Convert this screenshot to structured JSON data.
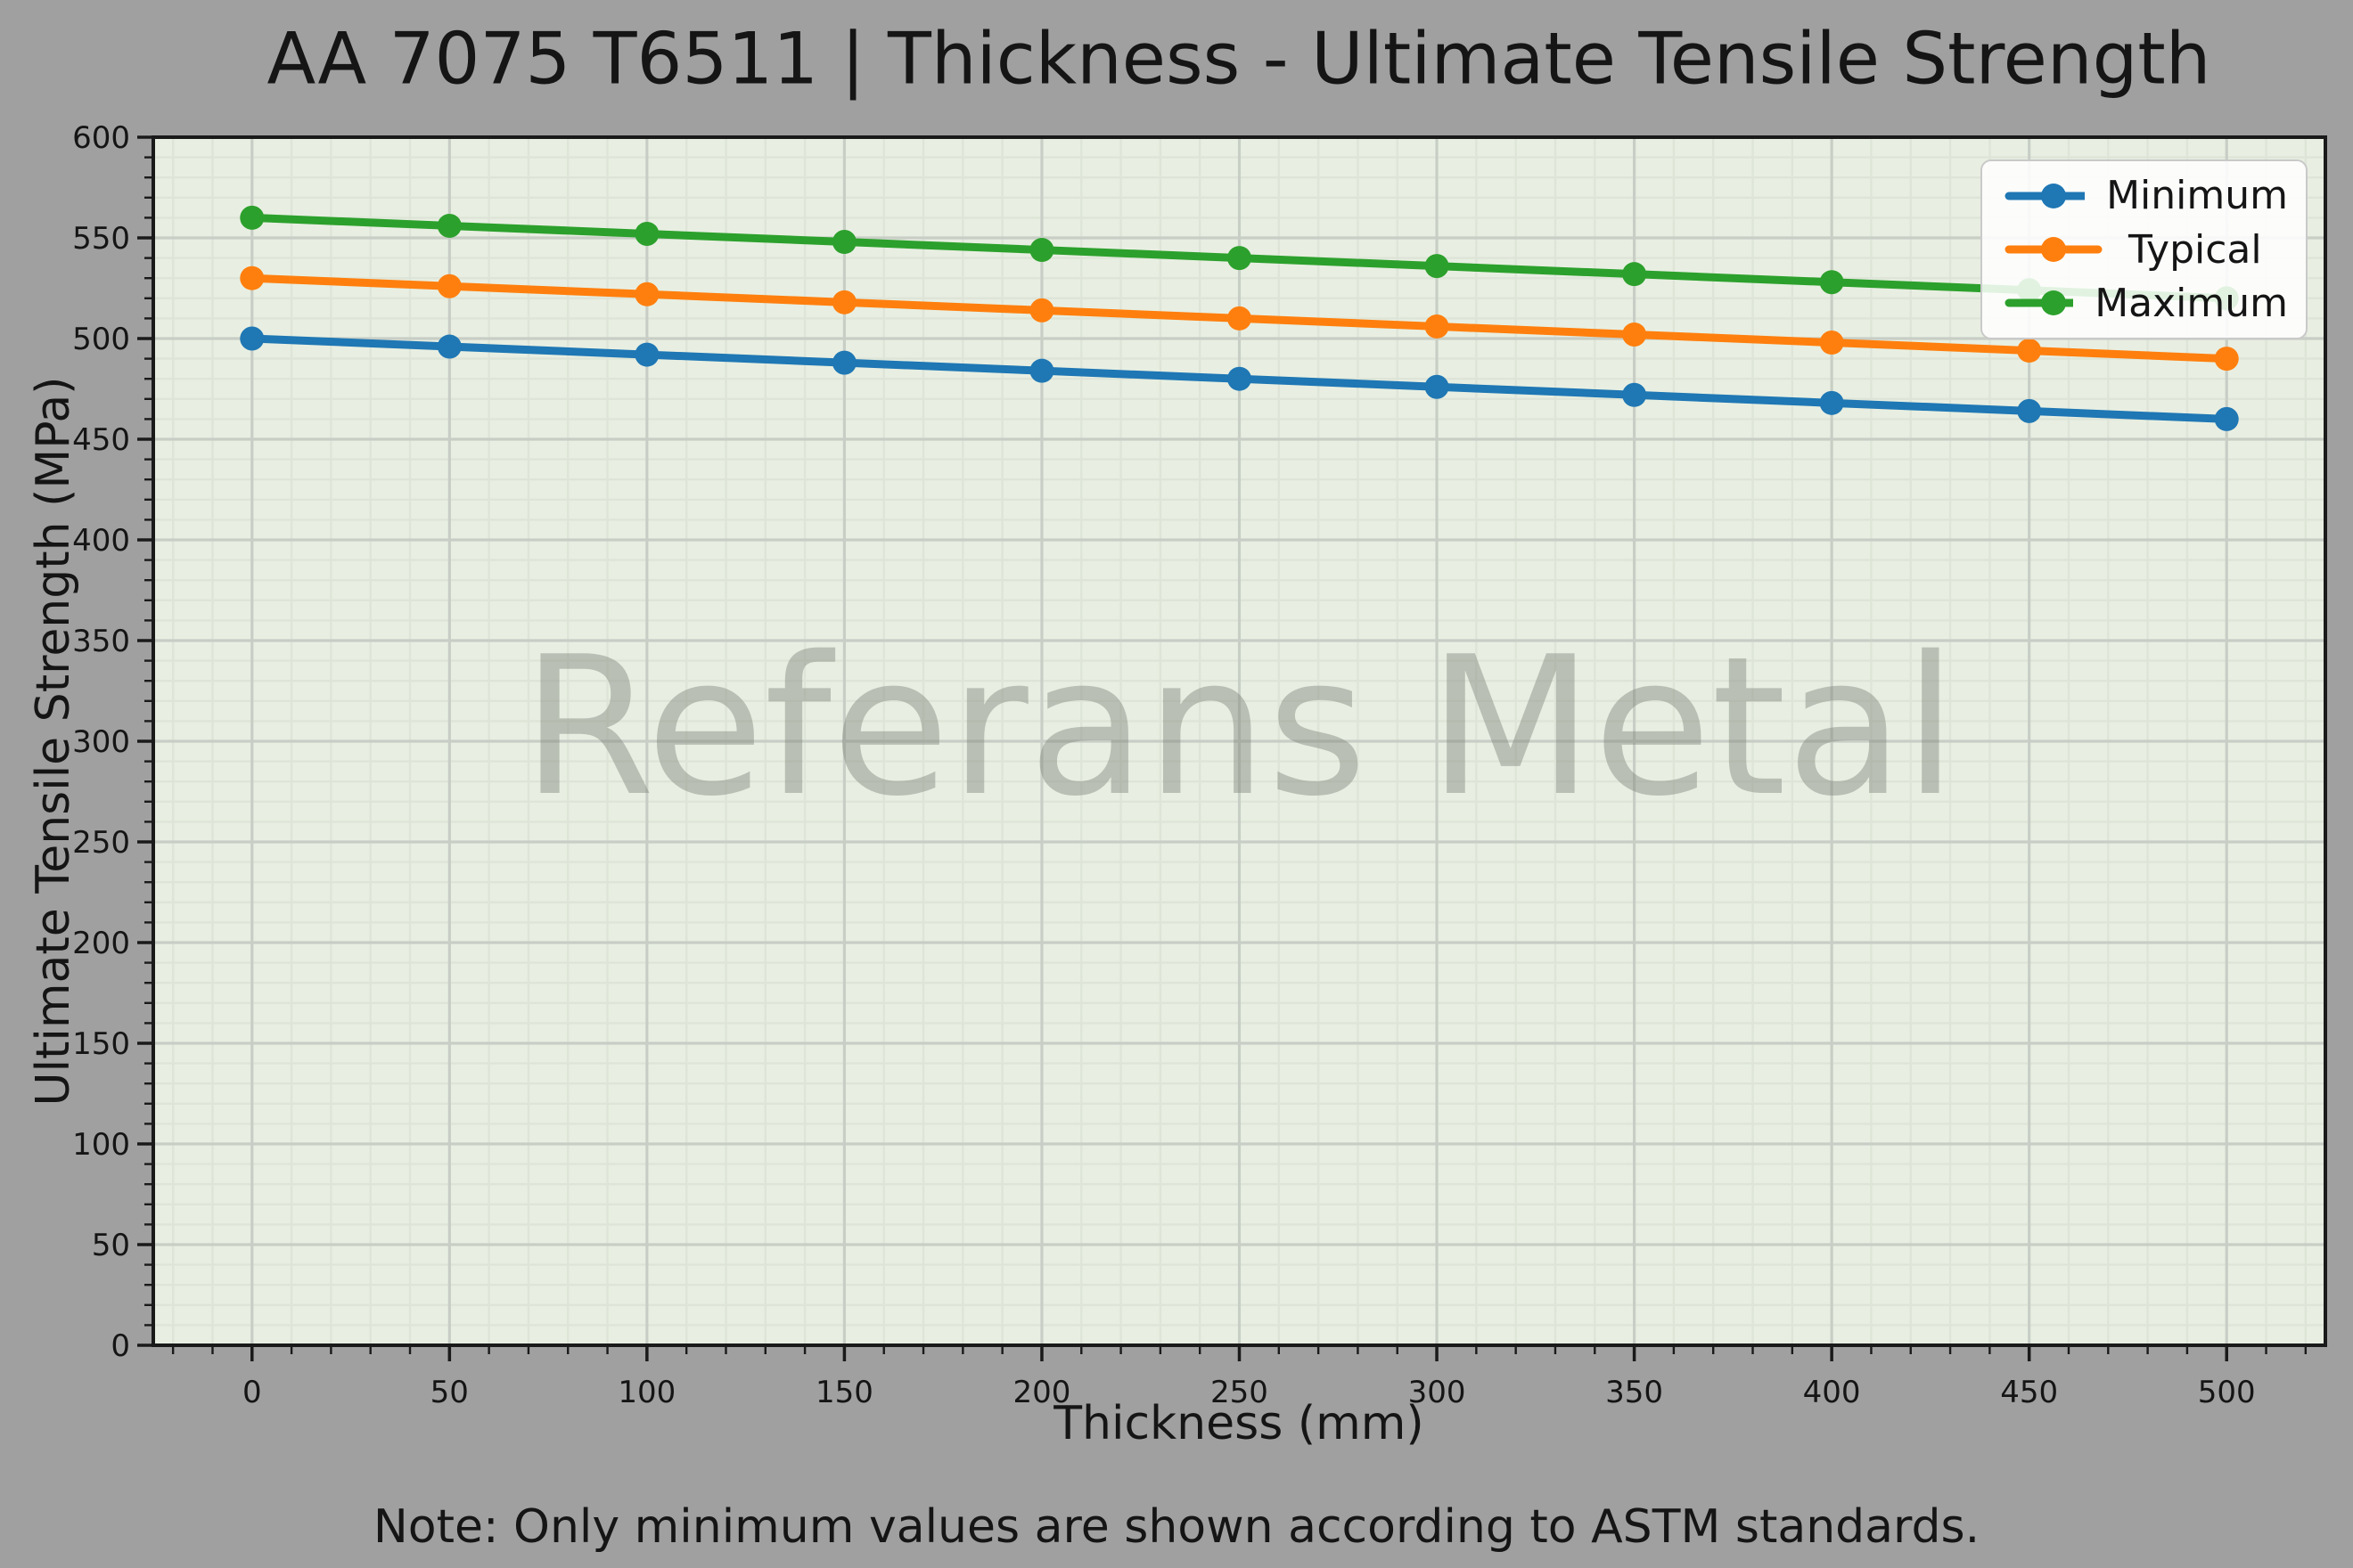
{
  "chart_data": {
    "type": "line",
    "title": "AA 7075 T6511 | Thickness - Ultimate Tensile Strength",
    "xlabel": "Thickness (mm)",
    "ylabel": "Ultimate Tensile Strength (MPa)",
    "note": "Note: Only minimum values are shown according to ASTM standards.",
    "watermark": "Referans Metal",
    "x": [
      0,
      50,
      100,
      150,
      200,
      250,
      300,
      350,
      400,
      450,
      500
    ],
    "series": [
      {
        "name": "Minimum",
        "color": "#1f77b4",
        "values": [
          500,
          496,
          492,
          488,
          484,
          480,
          476,
          472,
          468,
          464,
          460
        ]
      },
      {
        "name": "Typical",
        "color": "#ff7f0e",
        "values": [
          530,
          526,
          522,
          518,
          514,
          510,
          506,
          502,
          498,
          494,
          490
        ]
      },
      {
        "name": "Maximum",
        "color": "#2ca02c",
        "values": [
          560,
          556,
          552,
          548,
          544,
          540,
          536,
          532,
          528,
          524,
          520
        ]
      }
    ],
    "xlim": [
      -25,
      525
    ],
    "ylim": [
      0,
      600
    ],
    "x_ticks": [
      0,
      50,
      100,
      150,
      200,
      250,
      300,
      350,
      400,
      450,
      500
    ],
    "y_ticks": [
      0,
      50,
      100,
      150,
      200,
      250,
      300,
      350,
      400,
      450,
      500,
      550,
      600
    ],
    "minor_tick_step": 10,
    "grid": "major and minor gridlines on",
    "legend_position": "upper right",
    "marker": "circle",
    "colors": {
      "figure_bg": "#a0a0a0",
      "plot_bg": "#e8efe2",
      "grid_major": "#c8cec5",
      "grid_minor": "#dee5d8",
      "spine": "#1a1a1a",
      "text": "#151515",
      "watermark": "#80857c"
    }
  }
}
